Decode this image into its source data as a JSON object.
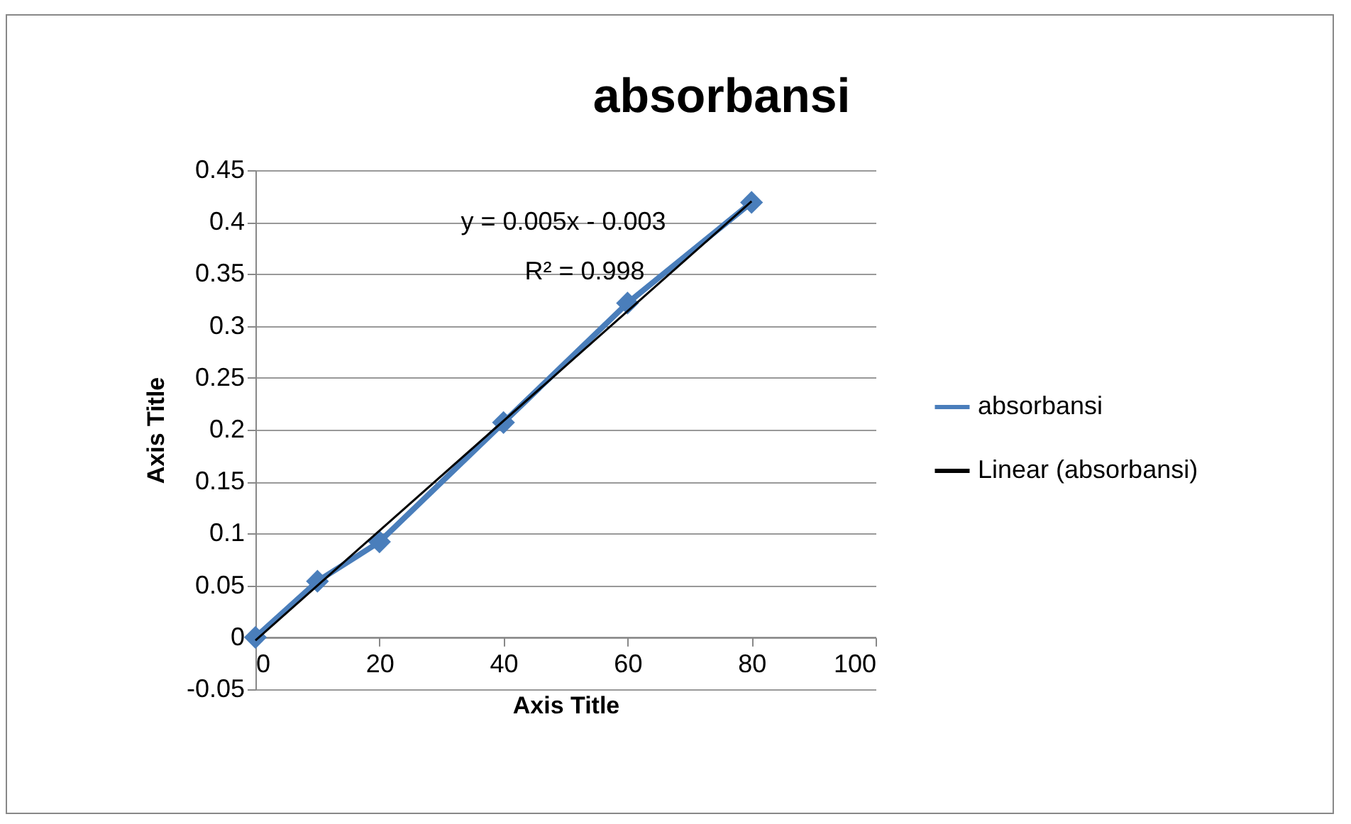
{
  "chart_data": {
    "type": "line",
    "title": "absorbansi",
    "xlabel": "Axis Title",
    "ylabel": "Axis Title",
    "x": [
      0,
      10,
      20,
      40,
      60,
      80
    ],
    "series": [
      {
        "name": "absorbansi",
        "color": "#4a7ebb",
        "values": [
          0,
          0.054,
          0.092,
          0.207,
          0.322,
          0.419
        ],
        "marker": "diamond"
      },
      {
        "name": "Linear (absorbansi)",
        "color": "#000000",
        "type": "line",
        "x": [
          0,
          80
        ],
        "values": [
          -0.003,
          0.42
        ],
        "marker": "none"
      }
    ],
    "xlim": [
      0,
      100
    ],
    "xticks": [
      0,
      20,
      40,
      60,
      80,
      100
    ],
    "ylim": [
      -0.05,
      0.45
    ],
    "yticks": [
      -0.05,
      0,
      0.05,
      0.1,
      0.15,
      0.2,
      0.25,
      0.3,
      0.35,
      0.4,
      0.45
    ],
    "grid": "y",
    "legend": "right",
    "annotations": [
      "y = 0.005x - 0.003",
      "R² = 0.998"
    ]
  }
}
